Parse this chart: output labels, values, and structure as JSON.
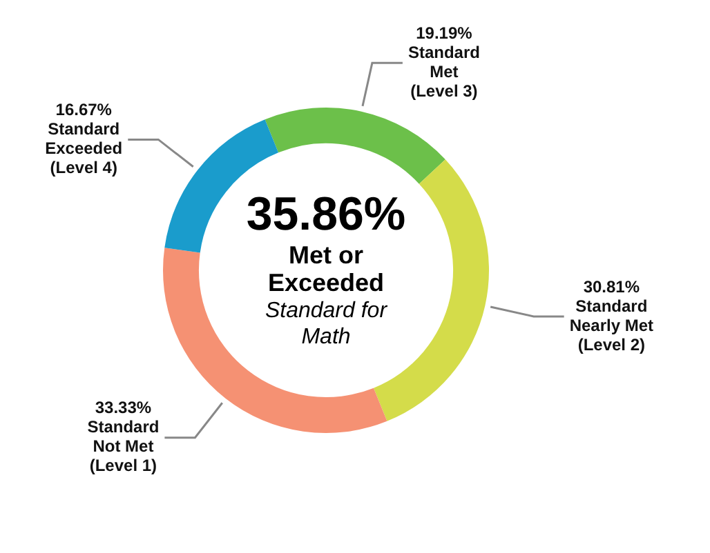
{
  "chart_data": {
    "type": "donut",
    "categories": [
      "Standard Met (Level 3)",
      "Standard Nearly Met (Level 2)",
      "Standard Not Met (Level 1)",
      "Standard Exceeded (Level 4)"
    ],
    "values": [
      19.19,
      30.81,
      33.33,
      16.67
    ],
    "colors": [
      "#6cc04a",
      "#d4dc4a",
      "#f59173",
      "#1a9ccc"
    ],
    "value_labels": [
      "19.19%",
      "30.81%",
      "33.33%",
      "16.67%"
    ],
    "legend": false,
    "annotations": [
      "35.86%",
      "Met or Exceeded",
      "Standard for Math"
    ]
  }
}
